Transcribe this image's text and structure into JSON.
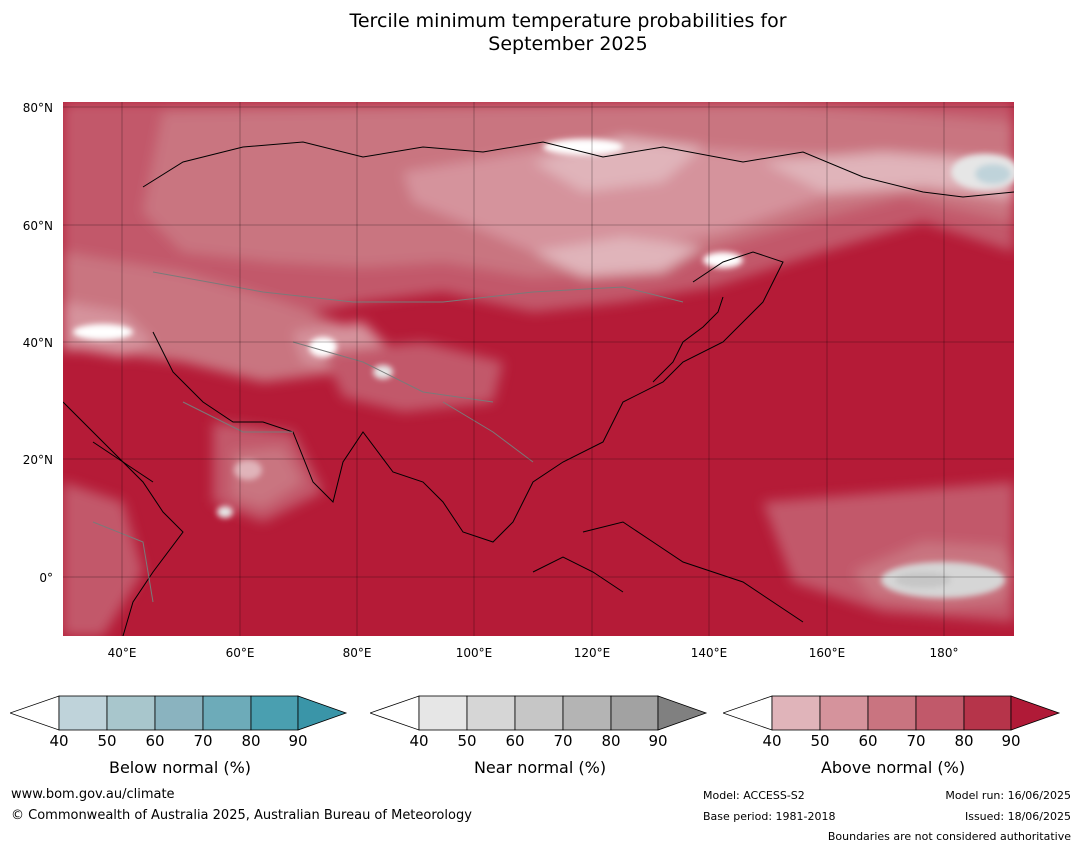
{
  "title_line1": "Tercile minimum temperature probabilities for",
  "title_line2": "September 2025",
  "map": {
    "lat_labels": [
      "80°N",
      "60°N",
      "40°N",
      "20°N",
      "0°"
    ],
    "lon_labels": [
      "40°E",
      "60°E",
      "80°E",
      "100°E",
      "120°E",
      "140°E",
      "160°E",
      "180°"
    ],
    "lat_range": [
      -10,
      80
    ],
    "lon_range": [
      30,
      191
    ],
    "dominant_category": "Above normal, 80-90%+"
  },
  "legends": [
    {
      "title": "Below normal (%)",
      "ticks": [
        "40",
        "50",
        "60",
        "70",
        "80",
        "90"
      ],
      "colors": [
        "#ffffff",
        "#bfd3da",
        "#a8c6cc",
        "#8ab3bf",
        "#6dabb9",
        "#4a9fb0",
        "#3a95a8"
      ]
    },
    {
      "title": "Near normal (%)",
      "ticks": [
        "40",
        "50",
        "60",
        "70",
        "80",
        "90"
      ],
      "colors": [
        "#ffffff",
        "#e6e6e6",
        "#d6d6d6",
        "#c6c6c6",
        "#b4b4b4",
        "#a2a2a2",
        "#808080"
      ]
    },
    {
      "title": "Above normal (%)",
      "ticks": [
        "40",
        "50",
        "60",
        "70",
        "80",
        "90"
      ],
      "colors": [
        "#ffffff",
        "#e0b4ba",
        "#d5939c",
        "#c97480",
        "#c1596a",
        "#b6344a",
        "#b01a37"
      ]
    }
  ],
  "footer": {
    "website": "www.bom.gov.au/climate",
    "copyright": "© Commonwealth of Australia 2025, Australian Bureau of Meteorology",
    "model": "Model: ACCESS-S2",
    "base_period": "Base period: 1981-2018",
    "model_run": "Model run: 16/06/2025",
    "issued": "Issued: 18/06/2025",
    "disclaimer": "Boundaries are not considered authoritative"
  }
}
